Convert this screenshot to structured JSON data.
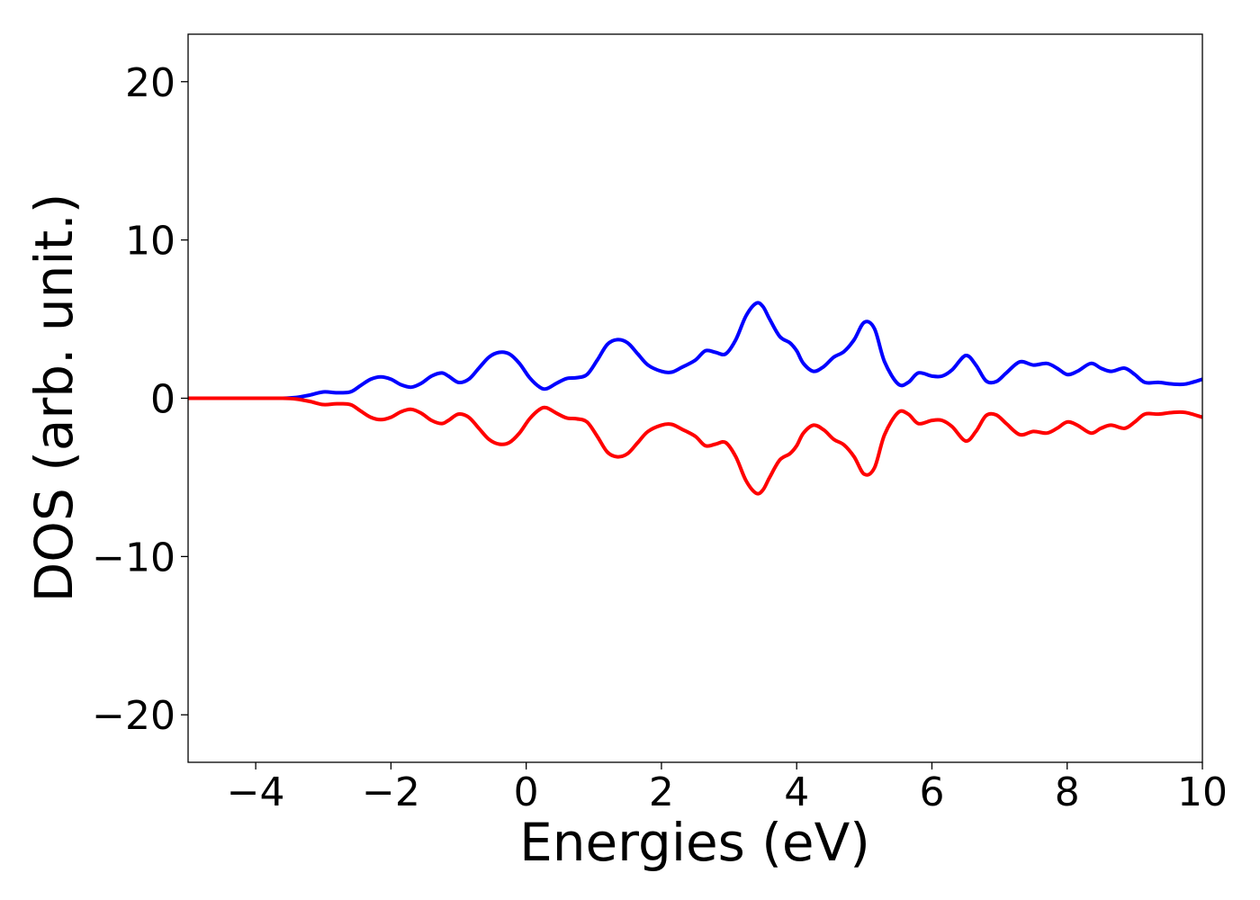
{
  "chart_data": {
    "type": "line",
    "title": "",
    "xlabel": "Energies (eV)",
    "ylabel": "DOS (arb. unit.)",
    "xlim": [
      -5,
      10
    ],
    "ylim": [
      -23,
      23
    ],
    "xticks": [
      -4,
      -2,
      0,
      2,
      4,
      6,
      8,
      10
    ],
    "yticks": [
      -20,
      -10,
      0,
      10,
      20
    ],
    "xtick_labels": [
      "−4",
      "−2",
      "0",
      "2",
      "4",
      "6",
      "8",
      "10"
    ],
    "ytick_labels": [
      "−20",
      "−10",
      "0",
      "10",
      "20"
    ],
    "grid": false,
    "legend": "none",
    "series": [
      {
        "color": "#0000ff",
        "x": [
          -5.0,
          -4.0,
          -3.6,
          -3.4,
          -3.2,
          -3.0,
          -2.8,
          -2.6,
          -2.45,
          -2.3,
          -2.15,
          -2.0,
          -1.85,
          -1.7,
          -1.55,
          -1.4,
          -1.25,
          -1.15,
          -1.0,
          -0.85,
          -0.7,
          -0.55,
          -0.4,
          -0.25,
          -0.1,
          0.05,
          0.2,
          0.3,
          0.45,
          0.6,
          0.75,
          0.9,
          1.05,
          1.2,
          1.35,
          1.5,
          1.65,
          1.8,
          2.0,
          2.15,
          2.3,
          2.5,
          2.65,
          2.8,
          2.95,
          3.1,
          3.25,
          3.4,
          3.5,
          3.6,
          3.75,
          3.9,
          4.0,
          4.1,
          4.25,
          4.4,
          4.55,
          4.7,
          4.85,
          5.0,
          5.15,
          5.3,
          5.5,
          5.65,
          5.8,
          6.0,
          6.15,
          6.3,
          6.5,
          6.65,
          6.8,
          6.95,
          7.1,
          7.3,
          7.5,
          7.7,
          7.85,
          8.0,
          8.15,
          8.35,
          8.5,
          8.65,
          8.85,
          9.0,
          9.15,
          9.35,
          9.55,
          9.75,
          10.0
        ],
        "y": [
          0.0,
          0.0,
          0.0,
          0.05,
          0.2,
          0.4,
          0.35,
          0.4,
          0.8,
          1.2,
          1.35,
          1.2,
          0.85,
          0.7,
          0.95,
          1.4,
          1.6,
          1.4,
          1.0,
          1.2,
          1.9,
          2.6,
          2.9,
          2.8,
          2.2,
          1.3,
          0.7,
          0.6,
          0.95,
          1.25,
          1.3,
          1.5,
          2.4,
          3.4,
          3.7,
          3.5,
          2.8,
          2.1,
          1.7,
          1.65,
          1.95,
          2.4,
          3.0,
          2.9,
          2.8,
          3.7,
          5.2,
          6.0,
          5.8,
          5.0,
          3.9,
          3.5,
          3.0,
          2.2,
          1.7,
          2.0,
          2.6,
          2.95,
          3.7,
          4.8,
          4.4,
          2.3,
          0.9,
          1.0,
          1.6,
          1.4,
          1.4,
          1.8,
          2.7,
          2.1,
          1.1,
          1.05,
          1.6,
          2.3,
          2.1,
          2.2,
          1.9,
          1.5,
          1.7,
          2.2,
          1.9,
          1.7,
          1.9,
          1.5,
          1.0,
          1.0,
          0.9,
          0.9,
          1.2
        ]
      },
      {
        "color": "#ff0000",
        "x": [
          -5.0,
          -4.0,
          -3.6,
          -3.4,
          -3.2,
          -3.0,
          -2.8,
          -2.6,
          -2.45,
          -2.3,
          -2.15,
          -2.0,
          -1.85,
          -1.7,
          -1.55,
          -1.4,
          -1.25,
          -1.15,
          -1.0,
          -0.85,
          -0.7,
          -0.55,
          -0.4,
          -0.25,
          -0.1,
          0.05,
          0.2,
          0.3,
          0.45,
          0.6,
          0.75,
          0.9,
          1.05,
          1.2,
          1.35,
          1.5,
          1.65,
          1.8,
          2.0,
          2.15,
          2.3,
          2.5,
          2.65,
          2.8,
          2.95,
          3.1,
          3.25,
          3.4,
          3.5,
          3.6,
          3.75,
          3.9,
          4.0,
          4.1,
          4.25,
          4.4,
          4.55,
          4.7,
          4.85,
          5.0,
          5.15,
          5.3,
          5.5,
          5.65,
          5.8,
          6.0,
          6.15,
          6.3,
          6.5,
          6.65,
          6.8,
          6.95,
          7.1,
          7.3,
          7.5,
          7.7,
          7.85,
          8.0,
          8.15,
          8.35,
          8.5,
          8.65,
          8.85,
          9.0,
          9.15,
          9.35,
          9.55,
          9.75,
          10.0
        ],
        "y": [
          0.0,
          0.0,
          0.0,
          -0.05,
          -0.2,
          -0.4,
          -0.35,
          -0.4,
          -0.8,
          -1.2,
          -1.35,
          -1.2,
          -0.85,
          -0.7,
          -0.95,
          -1.4,
          -1.6,
          -1.4,
          -1.0,
          -1.2,
          -1.9,
          -2.6,
          -2.9,
          -2.8,
          -2.2,
          -1.3,
          -0.7,
          -0.6,
          -0.95,
          -1.25,
          -1.3,
          -1.5,
          -2.4,
          -3.4,
          -3.7,
          -3.5,
          -2.8,
          -2.1,
          -1.7,
          -1.65,
          -1.95,
          -2.4,
          -3.0,
          -2.9,
          -2.8,
          -3.7,
          -5.2,
          -6.0,
          -5.8,
          -5.0,
          -3.9,
          -3.5,
          -3.0,
          -2.2,
          -1.7,
          -2.0,
          -2.6,
          -2.95,
          -3.7,
          -4.8,
          -4.4,
          -2.3,
          -0.9,
          -1.0,
          -1.6,
          -1.4,
          -1.4,
          -1.8,
          -2.7,
          -2.1,
          -1.1,
          -1.05,
          -1.6,
          -2.3,
          -2.1,
          -2.2,
          -1.9,
          -1.5,
          -1.7,
          -2.2,
          -1.9,
          -1.7,
          -1.9,
          -1.5,
          -1.0,
          -1.0,
          -0.9,
          -0.9,
          -1.2
        ]
      }
    ]
  }
}
